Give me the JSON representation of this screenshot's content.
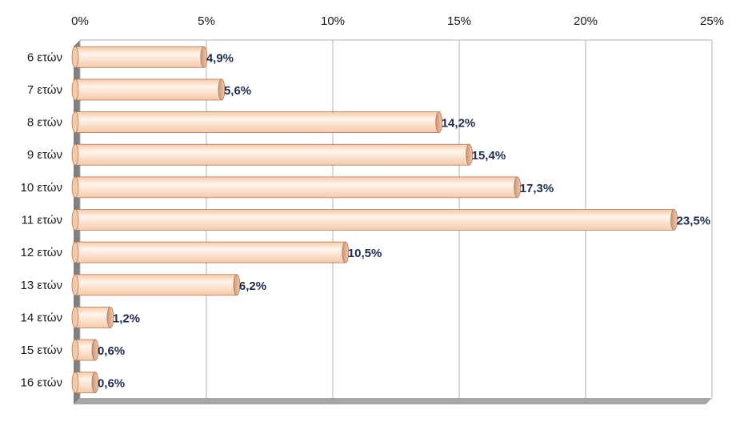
{
  "chart_data": {
    "type": "bar",
    "orientation": "horizontal",
    "style": "3d-cylinder",
    "title": "",
    "xlabel": "",
    "ylabel": "",
    "categories": [
      "6 ετών",
      "7 ετών",
      "8 ετών",
      "9 ετών",
      "10 ετών",
      "11 ετών",
      "12 ετών",
      "13 ετών",
      "14 ετών",
      "15 ετών",
      "16 ετών"
    ],
    "values": [
      4.9,
      5.6,
      14.2,
      15.4,
      17.3,
      23.5,
      10.5,
      6.2,
      1.2,
      0.6,
      0.6
    ],
    "data_labels": [
      "4,9%",
      "5,6%",
      "14,2%",
      "15,4%",
      "17,3%",
      "23,5%",
      "10,5%",
      "6,2%",
      "1,2%",
      "0,6%",
      "0,6%"
    ],
    "xlim": [
      0,
      25
    ],
    "x_ticks": [
      0,
      5,
      10,
      15,
      20,
      25
    ],
    "x_tick_labels": [
      "0%",
      "5%",
      "10%",
      "15%",
      "20%",
      "25%"
    ],
    "x_axis_position": "top",
    "grid": true,
    "legend": "none",
    "colors": {
      "bar_fill": "#f5c9a8",
      "bar_highlight": "#fff4ec",
      "bar_edge": "#b07a5c",
      "bar_cap": "#c8957a",
      "gridline": "#b0b0b0",
      "wall": "#7f7f7f",
      "floor": "#a6a6a6",
      "label_color": "#1f2d4d"
    }
  }
}
